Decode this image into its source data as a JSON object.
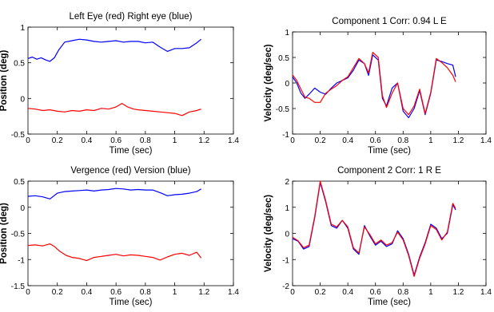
{
  "chart_data": [
    {
      "type": "line",
      "title": "Left Eye (red) Right eye (blue)",
      "xlabel": "Time (sec)",
      "ylabel": "Position (deg)",
      "xlim": [
        0,
        1.4
      ],
      "ylim": [
        -0.5,
        1
      ],
      "xticks": [
        "0",
        "0.2",
        "0.4",
        "0.6",
        "0.8",
        "1",
        "1.2",
        "1.4"
      ],
      "xtick_values": [
        0,
        0.2,
        0.4,
        0.6,
        0.8,
        1,
        1.2,
        1.4
      ],
      "yticks": [
        "-0.5",
        "0",
        "0.5",
        "1"
      ],
      "ytick_values": [
        -0.5,
        0,
        0.5,
        1
      ],
      "grid": false,
      "series": [
        {
          "color": "#0000ff",
          "x": [
            0,
            0.03,
            0.06,
            0.09,
            0.12,
            0.15,
            0.18,
            0.21,
            0.25,
            0.3,
            0.35,
            0.4,
            0.45,
            0.5,
            0.55,
            0.6,
            0.65,
            0.7,
            0.75,
            0.8,
            0.85,
            0.9,
            0.95,
            1.0,
            1.05,
            1.1,
            1.15,
            1.18
          ],
          "y": [
            0.56,
            0.58,
            0.55,
            0.57,
            0.54,
            0.52,
            0.57,
            0.68,
            0.79,
            0.81,
            0.83,
            0.82,
            0.8,
            0.79,
            0.8,
            0.81,
            0.79,
            0.8,
            0.8,
            0.78,
            0.79,
            0.72,
            0.66,
            0.7,
            0.7,
            0.71,
            0.78,
            0.83
          ]
        },
        {
          "color": "#ff0000",
          "x": [
            0,
            0.05,
            0.1,
            0.15,
            0.2,
            0.25,
            0.3,
            0.35,
            0.4,
            0.45,
            0.5,
            0.55,
            0.6,
            0.64,
            0.68,
            0.72,
            0.75,
            0.8,
            0.85,
            0.9,
            0.95,
            1.0,
            1.05,
            1.1,
            1.15,
            1.18
          ],
          "y": [
            -0.14,
            -0.15,
            -0.17,
            -0.16,
            -0.18,
            -0.19,
            -0.17,
            -0.18,
            -0.16,
            -0.17,
            -0.14,
            -0.15,
            -0.12,
            -0.07,
            -0.12,
            -0.15,
            -0.16,
            -0.17,
            -0.18,
            -0.19,
            -0.2,
            -0.21,
            -0.24,
            -0.19,
            -0.17,
            -0.15
          ]
        }
      ]
    },
    {
      "type": "line",
      "title": "Component 1 Corr: 0.94 L E",
      "xlabel": "Time (sec)",
      "ylabel": "Velocity (deg/sec)",
      "xlim": [
        0,
        1.4
      ],
      "ylim": [
        -1,
        1
      ],
      "xticks": [
        "0",
        "0.2",
        "0.4",
        "0.6",
        "0.8",
        "1",
        "1.2",
        "1.4"
      ],
      "xtick_values": [
        0,
        0.2,
        0.4,
        0.6,
        0.8,
        1,
        1.2,
        1.4
      ],
      "yticks": [
        "-1",
        "-0.5",
        "0",
        "0.5",
        "1"
      ],
      "ytick_values": [
        -1,
        -0.5,
        0,
        0.5,
        1
      ],
      "grid": false,
      "series": [
        {
          "color": "#0000ff",
          "x": [
            0,
            0.03,
            0.06,
            0.09,
            0.12,
            0.16,
            0.2,
            0.24,
            0.28,
            0.32,
            0.36,
            0.4,
            0.44,
            0.48,
            0.52,
            0.55,
            0.58,
            0.62,
            0.65,
            0.68,
            0.72,
            0.76,
            0.8,
            0.84,
            0.88,
            0.92,
            0.96,
            1.0,
            1.04,
            1.08,
            1.12,
            1.16,
            1.18
          ],
          "y": [
            0.12,
            0.0,
            -0.2,
            -0.3,
            -0.22,
            -0.1,
            -0.18,
            -0.22,
            -0.1,
            0.0,
            0.05,
            0.1,
            0.25,
            0.45,
            0.38,
            0.15,
            0.55,
            0.45,
            -0.3,
            -0.45,
            -0.1,
            0.0,
            -0.55,
            -0.68,
            -0.5,
            -0.15,
            -0.62,
            -0.2,
            0.45,
            0.42,
            0.38,
            0.35,
            0.12
          ]
        },
        {
          "color": "#ff0000",
          "x": [
            0,
            0.03,
            0.06,
            0.09,
            0.12,
            0.16,
            0.2,
            0.24,
            0.28,
            0.32,
            0.36,
            0.4,
            0.44,
            0.48,
            0.52,
            0.55,
            0.58,
            0.62,
            0.65,
            0.68,
            0.72,
            0.76,
            0.8,
            0.84,
            0.88,
            0.92,
            0.96,
            1.0,
            1.04,
            1.08,
            1.12,
            1.16,
            1.18
          ],
          "y": [
            0.16,
            0.05,
            -0.12,
            -0.28,
            -0.3,
            -0.38,
            -0.38,
            -0.2,
            -0.12,
            -0.05,
            0.05,
            0.12,
            0.3,
            0.48,
            0.38,
            0.2,
            0.6,
            0.5,
            -0.25,
            -0.48,
            -0.2,
            0.0,
            -0.5,
            -0.62,
            -0.45,
            -0.12,
            -0.6,
            -0.18,
            0.48,
            0.4,
            0.3,
            0.15,
            0.02
          ]
        }
      ]
    },
    {
      "type": "line",
      "title": "Vergence (red) Version (blue)",
      "xlabel": "Time (sec)",
      "ylabel": "Position (deg)",
      "xlim": [
        0,
        1.4
      ],
      "ylim": [
        -1.5,
        0.5
      ],
      "xticks": [
        "0",
        "0.2",
        "0.4",
        "0.6",
        "0.8",
        "1",
        "1.2",
        "1.4"
      ],
      "xtick_values": [
        0,
        0.2,
        0.4,
        0.6,
        0.8,
        1,
        1.2,
        1.4
      ],
      "yticks": [
        "-1.5",
        "-1",
        "-0.5",
        "0",
        "0.5"
      ],
      "ytick_values": [
        -1.5,
        -1,
        -0.5,
        0,
        0.5
      ],
      "grid": false,
      "series": [
        {
          "color": "#0000ff",
          "x": [
            0,
            0.05,
            0.1,
            0.15,
            0.2,
            0.25,
            0.3,
            0.35,
            0.4,
            0.45,
            0.5,
            0.55,
            0.6,
            0.65,
            0.7,
            0.75,
            0.8,
            0.85,
            0.9,
            0.95,
            1.0,
            1.05,
            1.1,
            1.15,
            1.18
          ],
          "y": [
            0.21,
            0.22,
            0.2,
            0.16,
            0.27,
            0.3,
            0.31,
            0.32,
            0.33,
            0.31,
            0.33,
            0.34,
            0.36,
            0.35,
            0.33,
            0.34,
            0.33,
            0.33,
            0.28,
            0.22,
            0.24,
            0.25,
            0.27,
            0.3,
            0.35
          ]
        },
        {
          "color": "#ff0000",
          "x": [
            0,
            0.05,
            0.1,
            0.15,
            0.18,
            0.22,
            0.26,
            0.3,
            0.35,
            0.4,
            0.45,
            0.5,
            0.55,
            0.6,
            0.65,
            0.7,
            0.75,
            0.8,
            0.85,
            0.9,
            0.95,
            1.0,
            1.05,
            1.1,
            1.15,
            1.18
          ],
          "y": [
            -0.73,
            -0.72,
            -0.74,
            -0.7,
            -0.75,
            -0.85,
            -0.92,
            -0.96,
            -0.98,
            -1.02,
            -0.96,
            -0.94,
            -0.92,
            -0.9,
            -0.93,
            -0.91,
            -0.92,
            -0.94,
            -0.96,
            -1.01,
            -0.95,
            -0.9,
            -0.88,
            -0.92,
            -0.86,
            -0.97
          ]
        }
      ]
    },
    {
      "type": "line",
      "title": "Component 2 Corr: 1 R E",
      "xlabel": "Time (sec)",
      "ylabel": "Velocity (deg/sec)",
      "xlim": [
        0,
        1.4
      ],
      "ylim": [
        -2,
        2
      ],
      "xticks": [
        "0",
        "0.2",
        "0.4",
        "0.6",
        "0.8",
        "1",
        "1.2",
        "1.4"
      ],
      "xtick_values": [
        0,
        0.2,
        0.4,
        0.6,
        0.8,
        1,
        1.2,
        1.4
      ],
      "yticks": [
        "-2",
        "-1",
        "0",
        "1",
        "2"
      ],
      "ytick_values": [
        -2,
        -1,
        0,
        1,
        2
      ],
      "grid": false,
      "series": [
        {
          "color": "#0000ff",
          "x": [
            0,
            0.04,
            0.08,
            0.12,
            0.16,
            0.2,
            0.24,
            0.28,
            0.32,
            0.36,
            0.4,
            0.44,
            0.48,
            0.52,
            0.56,
            0.6,
            0.64,
            0.68,
            0.72,
            0.76,
            0.8,
            0.84,
            0.88,
            0.92,
            0.96,
            1.0,
            1.04,
            1.08,
            1.12,
            1.16,
            1.18
          ],
          "y": [
            -0.2,
            -0.3,
            -0.6,
            -0.5,
            0.6,
            1.95,
            1.2,
            0.3,
            0.2,
            0.5,
            0.2,
            -0.6,
            -0.8,
            0.3,
            -0.1,
            -0.45,
            -0.3,
            -0.5,
            -0.4,
            0.1,
            -0.2,
            -0.8,
            -1.6,
            -0.9,
            -0.35,
            0.35,
            0.2,
            -0.2,
            0.0,
            1.1,
            0.9
          ]
        },
        {
          "color": "#ff0000",
          "x": [
            0,
            0.04,
            0.08,
            0.12,
            0.16,
            0.2,
            0.24,
            0.28,
            0.32,
            0.36,
            0.4,
            0.44,
            0.48,
            0.52,
            0.56,
            0.6,
            0.64,
            0.68,
            0.72,
            0.76,
            0.8,
            0.84,
            0.88,
            0.92,
            0.96,
            1.0,
            1.04,
            1.08,
            1.12,
            1.16,
            1.18
          ],
          "y": [
            -0.15,
            -0.28,
            -0.55,
            -0.45,
            0.65,
            2.0,
            1.25,
            0.35,
            0.25,
            0.5,
            0.25,
            -0.55,
            -0.75,
            0.25,
            -0.05,
            -0.4,
            -0.25,
            -0.45,
            -0.35,
            0.05,
            -0.25,
            -0.85,
            -1.65,
            -0.95,
            -0.4,
            0.3,
            0.15,
            -0.25,
            0.05,
            1.15,
            0.95
          ]
        }
      ]
    }
  ]
}
